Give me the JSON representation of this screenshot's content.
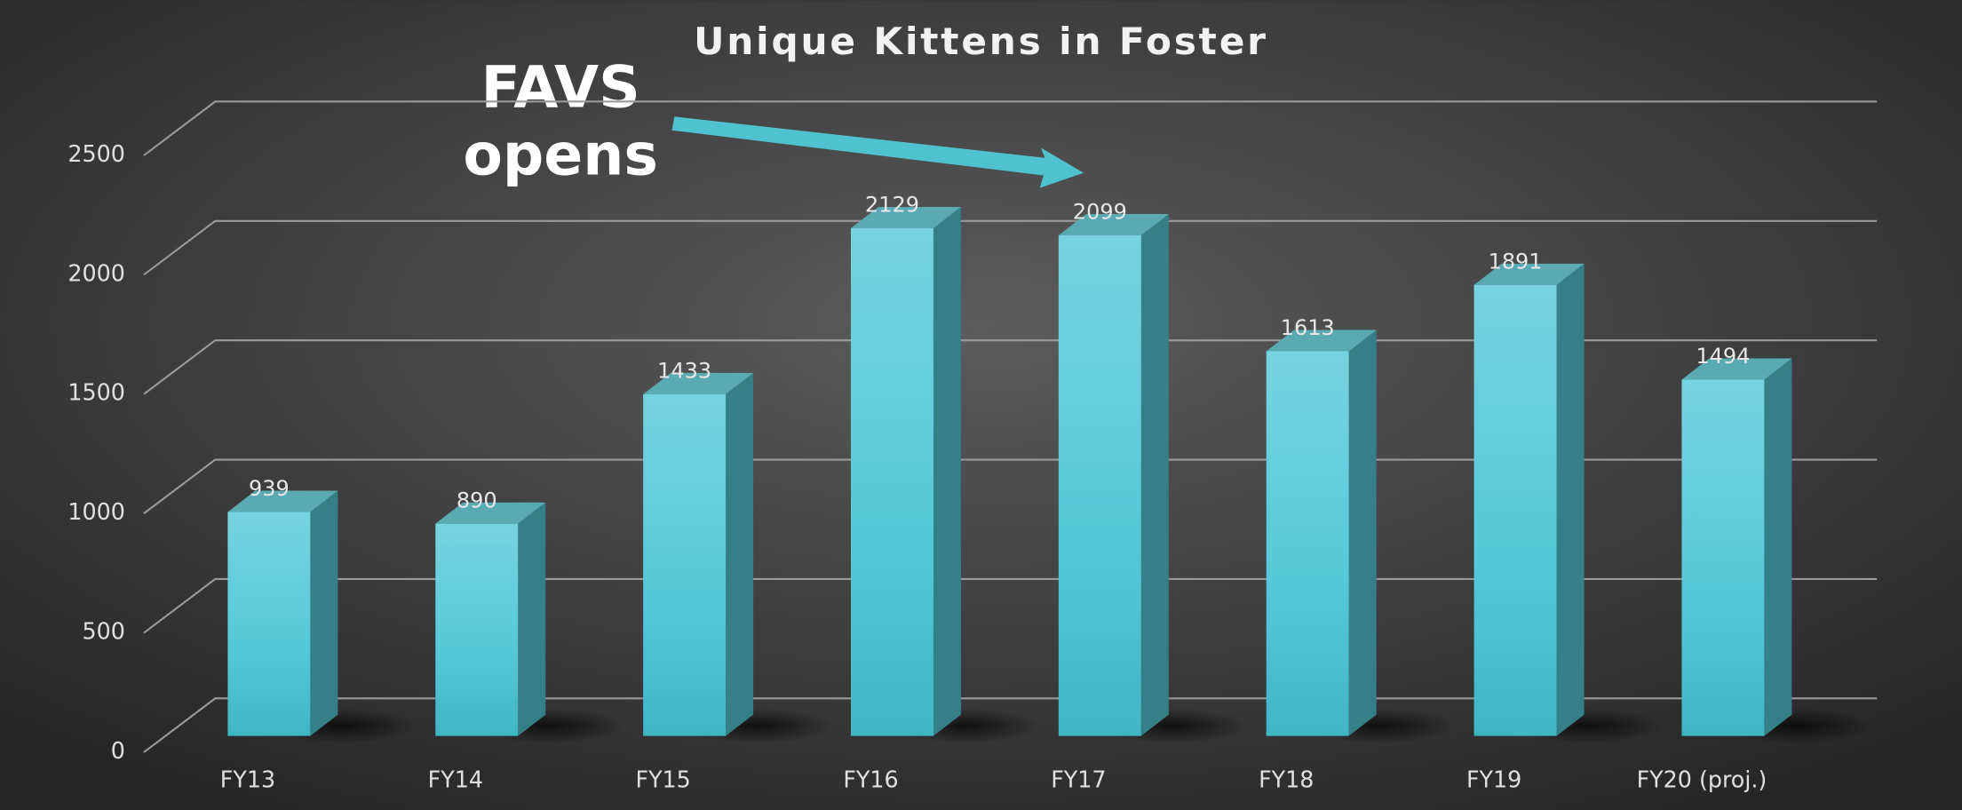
{
  "chart_data": {
    "type": "bar3d",
    "title": "Unique Kittens in Foster",
    "categories": [
      "FY13",
      "FY14",
      "FY15",
      "FY16",
      "FY17",
      "FY18",
      "FY19",
      "FY20 (proj.)"
    ],
    "values": [
      939,
      890,
      1433,
      2129,
      2099,
      1613,
      1891,
      1494
    ],
    "color": "#4fc8d6",
    "ylim": [
      0,
      2500
    ],
    "yticks": [
      0,
      500,
      1000,
      1500,
      2000,
      2500
    ],
    "grid": true,
    "annotation": [
      "FAVS",
      "opens"
    ]
  }
}
